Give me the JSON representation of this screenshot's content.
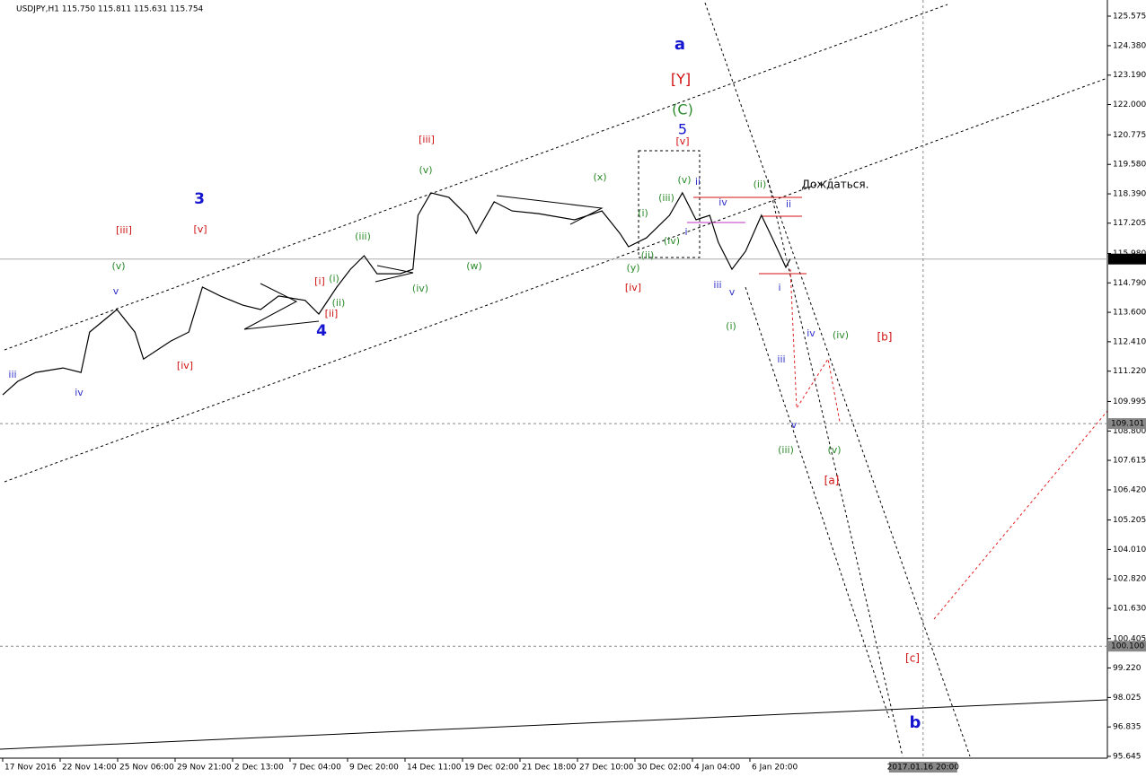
{
  "chart_data": {
    "type": "line",
    "title": "USDJPY,H1  115.750 115.811 115.631 115.754",
    "x": [
      0,
      2.1,
      4.6,
      8.4,
      10.9,
      12.1,
      15.9,
      18.4,
      19.6,
      23.4,
      25.9,
      27.8,
      30.3,
      33.4,
      35.9,
      38.4,
      42.1,
      44,
      46.5,
      48.4,
      50.3,
      52.1,
      55.3,
      57.1,
      57.8,
      59.6,
      62.1,
      64.6,
      65.9,
      68.4,
      70.9,
      74.6,
      79.6,
      83.4,
      85.9,
      87.1,
      89.6,
      92.8,
      94.6,
      96.5,
      98.4,
      99.6,
      101.5,
      103.4,
      105.6,
      107.1,
      109,
      109.6
    ],
    "series": [
      {
        "name": "USDJPY,H1",
        "color": "#000000",
        "values": [
          110.26,
          110.81,
          111.17,
          111.35,
          111.17,
          112.8,
          113.71,
          112.8,
          111.71,
          112.44,
          112.8,
          114.62,
          114.26,
          113.89,
          113.71,
          114.26,
          114.08,
          113.53,
          114.62,
          115.34,
          115.89,
          115.16,
          115.16,
          115.34,
          117.52,
          118.43,
          118.25,
          117.52,
          116.79,
          118.07,
          117.7,
          117.59,
          117.34,
          117.7,
          116.79,
          116.25,
          116.61,
          117.52,
          118.43,
          117.34,
          117.52,
          116.43,
          115.34,
          116.07,
          117.52,
          116.61,
          115.42,
          115.754
        ]
      }
    ],
    "xlim": [
      -0.375,
      153.75
    ],
    "xticks": [
      {
        "value": 0,
        "label": "17 Nov 2016"
      },
      {
        "value": 8,
        "label": "22 Nov 14:00"
      },
      {
        "value": 16,
        "label": "25 Nov 06:00"
      },
      {
        "value": 24,
        "label": "29 Nov 21:00"
      },
      {
        "value": 32,
        "label": "2 Dec 13:00"
      },
      {
        "value": 40,
        "label": "7 Dec 04:00"
      },
      {
        "value": 48,
        "label": "9 Dec 20:00"
      },
      {
        "value": 56,
        "label": "14 Dec 11:00"
      },
      {
        "value": 64,
        "label": "19 Dec 02:00"
      },
      {
        "value": 72,
        "label": "21 Dec 18:00"
      },
      {
        "value": 80,
        "label": "27 Dec 10:00"
      },
      {
        "value": 88,
        "label": "30 Dec 02:00"
      },
      {
        "value": 96,
        "label": "4 Jan 04:00"
      },
      {
        "value": 104,
        "label": "6 Jan 20:00"
      }
    ],
    "ylim": [
      95.572,
      126.228
    ],
    "yticks": [
      125.575,
      {
        "value": 124.38,
        "label": "124.380"
      },
      {
        "value": 123.19,
        "label": "123.190"
      },
      {
        "value": 122,
        "label": "122.000"
      },
      120.775,
      {
        "value": 119.58,
        "label": "119.580"
      },
      {
        "value": 118.39,
        "label": "118.390"
      },
      117.205,
      {
        "value": 115.98,
        "label": "115.980"
      },
      {
        "value": 114.79,
        "label": "114.790"
      },
      {
        "value": 113.6,
        "label": "113.600"
      },
      {
        "value": 112.41,
        "label": "112.410"
      },
      {
        "value": 111.22,
        "label": "111.220"
      },
      109.995,
      {
        "value": 108.8,
        "label": "108.800"
      },
      107.615,
      {
        "value": 106.42,
        "label": "106.420"
      },
      105.205,
      {
        "value": 104.01,
        "label": "104.010"
      },
      {
        "value": 102.82,
        "label": "102.820"
      },
      {
        "value": 101.63,
        "label": "101.630"
      },
      100.405,
      {
        "value": 99.22,
        "label": "99.220"
      },
      98.025,
      96.835,
      95.645
    ],
    "levels": [
      115.754,
      109.101,
      {
        "value": 100.1,
        "label": "100.100"
      }
    ],
    "vline": {
      "value": 128.1,
      "label": "2017.01.16 20:00"
    },
    "grid": false,
    "annotations": [
      {
        "text": "iii",
        "color": "#3333cc"
      },
      {
        "text": "iv",
        "color": "#3333cc"
      },
      {
        "text": "v",
        "color": "#3333cc"
      },
      {
        "text": "(v)",
        "color": "#2a8a2a"
      },
      {
        "text": "[iii]",
        "color": "#d01010"
      },
      {
        "text": "3",
        "color": "#1515d0"
      },
      {
        "text": "[v]",
        "color": "#d01010"
      },
      {
        "text": "[iv]",
        "color": "#d01010"
      },
      {
        "text": "[i]",
        "color": "#d01010"
      },
      {
        "text": "(i)",
        "color": "#2a8a2a"
      },
      {
        "text": "(ii)",
        "color": "#2a8a2a"
      },
      {
        "text": "[ii]",
        "color": "#d01010"
      },
      {
        "text": "4",
        "color": "#1515d0"
      },
      {
        "text": "(iii)",
        "color": "#2a8a2a"
      },
      {
        "text": "(iv)",
        "color": "#2a8a2a"
      },
      {
        "text": "(v)",
        "color": "#2a8a2a"
      },
      {
        "text": "[iii]",
        "color": "#d01010"
      },
      {
        "text": "(w)",
        "color": "#2a8a2a"
      },
      {
        "text": "(x)",
        "color": "#2a8a2a"
      },
      {
        "text": "(y)",
        "color": "#2a8a2a"
      },
      {
        "text": "[iv]",
        "color": "#d01010"
      },
      {
        "text": "(i)",
        "color": "#2a8a2a"
      },
      {
        "text": "(ii)",
        "color": "#2a8a2a"
      },
      {
        "text": "(iii)",
        "color": "#2a8a2a"
      },
      {
        "text": "(iv)",
        "color": "#2a8a2a"
      },
      {
        "text": "(v)",
        "color": "#2a8a2a"
      },
      {
        "text": "ii",
        "color": "#3333cc"
      },
      {
        "text": "i",
        "color": "#3333cc"
      },
      {
        "text": "iv",
        "color": "#3333cc"
      },
      {
        "text": "iii",
        "color": "#3333cc"
      },
      {
        "text": "v",
        "color": "#3333cc"
      },
      {
        "text": "(i)",
        "color": "#2a8a2a"
      },
      {
        "text": "a",
        "color": "#1515d0"
      },
      {
        "text": "[Y]",
        "color": "#d01010"
      },
      {
        "text": "(C)",
        "color": "#2a8a2a"
      },
      {
        "text": "5",
        "color": "#1515d0"
      },
      {
        "text": "[v]",
        "color": "#d01010"
      },
      {
        "text": "(ii)",
        "color": "#2a8a2a"
      },
      {
        "text": "ii",
        "color": "#3333cc"
      },
      {
        "text": "i",
        "color": "#3333cc"
      },
      {
        "text": "iv",
        "color": "#3333cc"
      },
      {
        "text": "(iv)",
        "color": "#2a8a2a"
      },
      {
        "text": "[b]",
        "color": "#d01010"
      },
      {
        "text": "iii",
        "color": "#3333cc"
      },
      {
        "text": "v",
        "color": "#3333cc"
      },
      {
        "text": "(iii)",
        "color": "#2a8a2a"
      },
      {
        "text": "(v)",
        "color": "#2a8a2a"
      },
      {
        "text": "[a]",
        "color": "#d01010"
      },
      {
        "text": "[c]",
        "color": "#d01010"
      },
      {
        "text": "b",
        "color": "#1515d0"
      },
      {
        "text": "Дождаться.",
        "color": "#000000"
      }
    ]
  }
}
